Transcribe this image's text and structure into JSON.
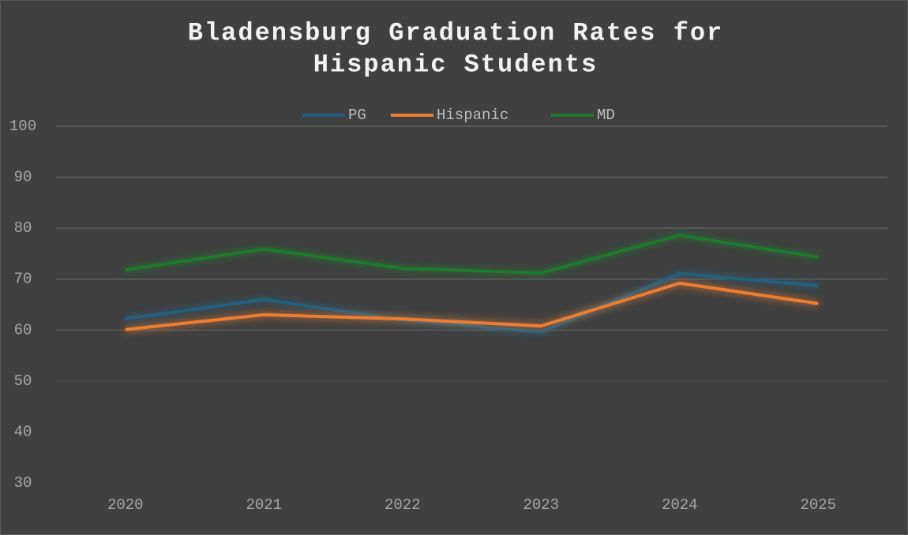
{
  "chart_data": {
    "type": "line",
    "title": [
      "Bladensburg Graduation Rates for",
      "Hispanic Students"
    ],
    "categories": [
      "2020",
      "2021",
      "2022",
      "2023",
      "2024",
      "2025"
    ],
    "series": [
      {
        "name": "PG",
        "color": "#22607f",
        "values": [
          62.2,
          66,
          62,
          59.6,
          71.1,
          68.7
        ]
      },
      {
        "name": "Hispanic",
        "color": "#ed7d31",
        "values": [
          60.1,
          63,
          62.2,
          60.8,
          69.2,
          65.2
        ]
      },
      {
        "name": "MD",
        "color": "#1e7a2b",
        "values": [
          71.8,
          75.9,
          72.1,
          71.2,
          78.6,
          74.3
        ]
      }
    ],
    "ylim": [
      30,
      100
    ],
    "yticks": [
      30,
      40,
      50,
      60,
      70,
      80,
      90,
      100
    ],
    "grid": true,
    "legend": "top"
  }
}
